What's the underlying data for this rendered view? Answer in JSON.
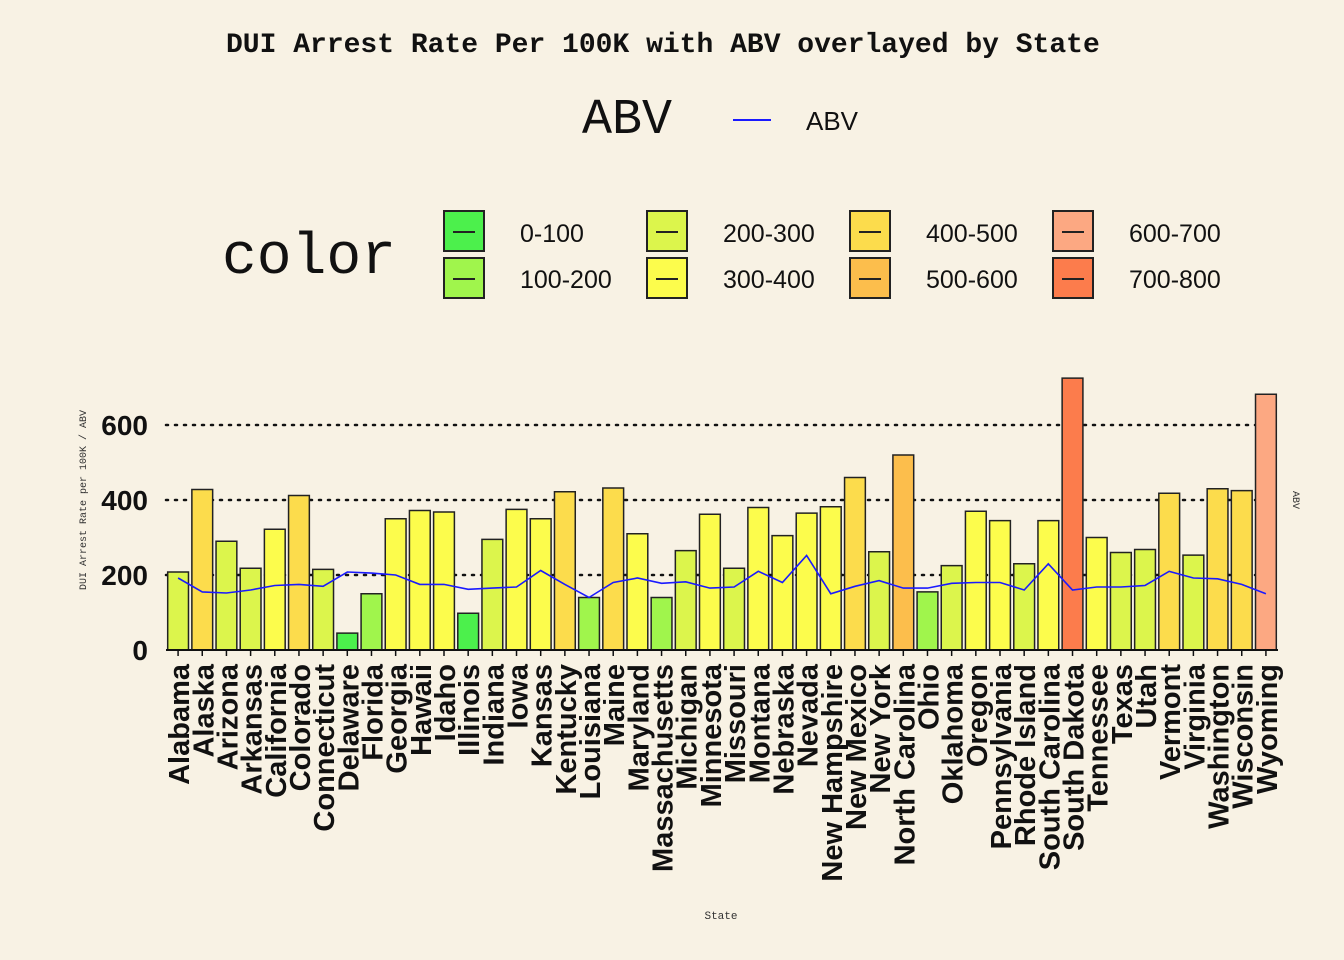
{
  "chart_data": {
    "type": "bar",
    "title": "DUI Arrest Rate Per 100K with ABV overlayed by State",
    "xlabel": "State",
    "ylabel": "DUI Arrest Rate per 100K / ABV",
    "secondary_ylabel": "ABV",
    "ylim": [
      0,
      740
    ],
    "yticks": [
      0,
      200,
      400,
      600
    ],
    "grid": "horizontal dotted",
    "legend": {
      "abv": {
        "title": "ABV",
        "entries": [
          {
            "label": "ABV",
            "color": "#1a1aff"
          }
        ]
      },
      "color": {
        "title": "color",
        "entries": [
          {
            "label": "0-100",
            "color": "#4cf04c"
          },
          {
            "label": "100-200",
            "color": "#a0f54c"
          },
          {
            "label": "200-300",
            "color": "#dcf54c"
          },
          {
            "label": "300-400",
            "color": "#fcfc4c"
          },
          {
            "label": "400-500",
            "color": "#fcdc4c"
          },
          {
            "label": "500-600",
            "color": "#fcbe4c"
          },
          {
            "label": "600-700",
            "color": "#fca882"
          },
          {
            "label": "700-800",
            "color": "#fc7c4c"
          }
        ]
      }
    },
    "categories": [
      "Alabama",
      "Alaska",
      "Arizona",
      "Arkansas",
      "California",
      "Colorado",
      "Connecticut",
      "Delaware",
      "Florida",
      "Georgia",
      "Hawaii",
      "Idaho",
      "Illinois",
      "Indiana",
      "Iowa",
      "Kansas",
      "Kentucky",
      "Louisiana",
      "Maine",
      "Maryland",
      "Massachusetts",
      "Michigan",
      "Minnesota",
      "Missouri",
      "Montana",
      "Nebraska",
      "Nevada",
      "New Hampshire",
      "New Mexico",
      "New York",
      "North Carolina",
      "Ohio",
      "Oklahoma",
      "Oregon",
      "Pennsylvania",
      "Rhode Island",
      "South Carolina",
      "South Dakota",
      "Tennessee",
      "Texas",
      "Utah",
      "Vermont",
      "Virginia",
      "Washington",
      "Wisconsin",
      "Wyoming"
    ],
    "series": [
      {
        "name": "DUI Arrest Rate Per 100K",
        "values": [
          208,
          428,
          290,
          218,
          322,
          412,
          215,
          45,
          150,
          350,
          372,
          368,
          98,
          295,
          375,
          350,
          422,
          140,
          432,
          310,
          140,
          265,
          362,
          218,
          380,
          305,
          365,
          382,
          460,
          262,
          520,
          155,
          225,
          370,
          345,
          230,
          345,
          725,
          300,
          260,
          268,
          418,
          253,
          430,
          425,
          682
        ]
      },
      {
        "name": "ABV",
        "values": [
          192,
          155,
          152,
          160,
          172,
          175,
          170,
          208,
          205,
          200,
          175,
          175,
          162,
          165,
          168,
          212,
          175,
          140,
          180,
          192,
          178,
          182,
          165,
          168,
          210,
          180,
          252,
          150,
          170,
          185,
          165,
          165,
          178,
          180,
          180,
          160,
          230,
          160,
          168,
          168,
          172,
          210,
          192,
          190,
          175,
          150
        ]
      }
    ],
    "bar_colors": [
      "#dcf54c",
      "#fcdc4c",
      "#dcf54c",
      "#dcf54c",
      "#fcfc4c",
      "#fcdc4c",
      "#dcf54c",
      "#4cf04c",
      "#a0f54c",
      "#fcfc4c",
      "#fcfc4c",
      "#fcfc4c",
      "#4cf04c",
      "#dcf54c",
      "#fcfc4c",
      "#fcfc4c",
      "#fcdc4c",
      "#a0f54c",
      "#fcdc4c",
      "#fcfc4c",
      "#a0f54c",
      "#dcf54c",
      "#fcfc4c",
      "#dcf54c",
      "#fcfc4c",
      "#fcfc4c",
      "#fcfc4c",
      "#fcfc4c",
      "#fcdc4c",
      "#dcf54c",
      "#fcbe4c",
      "#a0f54c",
      "#dcf54c",
      "#fcfc4c",
      "#fcfc4c",
      "#dcf54c",
      "#fcfc4c",
      "#fc7c4c",
      "#fcfc4c",
      "#dcf54c",
      "#dcf54c",
      "#fcdc4c",
      "#dcf54c",
      "#fcdc4c",
      "#fcdc4c",
      "#fca882"
    ]
  }
}
